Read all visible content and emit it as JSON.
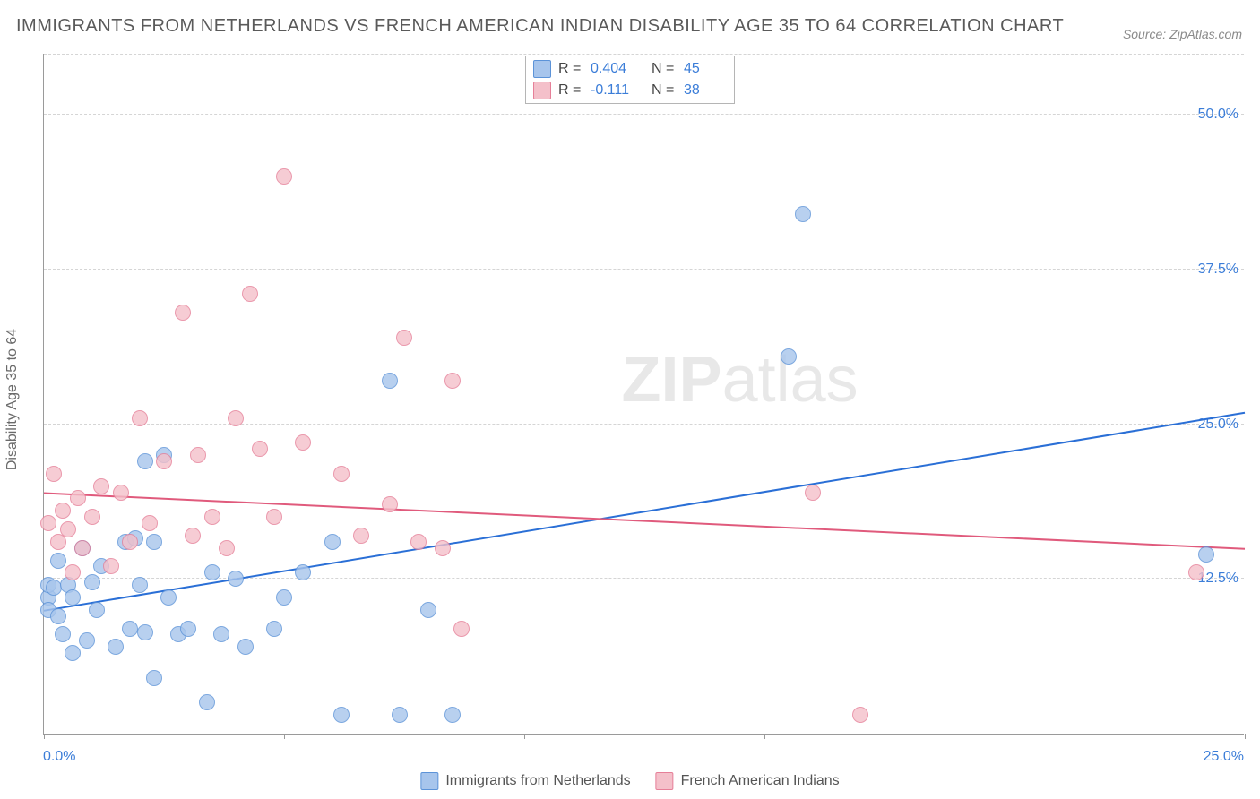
{
  "title": "IMMIGRANTS FROM NETHERLANDS VS FRENCH AMERICAN INDIAN DISABILITY AGE 35 TO 64 CORRELATION CHART",
  "source": "Source: ZipAtlas.com",
  "watermark": {
    "zip": "ZIP",
    "atlas": "atlas"
  },
  "ylabel": "Disability Age 35 to 64",
  "chart": {
    "type": "scatter",
    "background_color": "#ffffff",
    "grid_color": "#d5d5d5",
    "xlim": [
      0,
      25
    ],
    "ylim": [
      0,
      55
    ],
    "xticks": [
      0,
      5,
      10,
      15,
      20,
      25
    ],
    "xtick_labels": {
      "0": "0.0%",
      "25": "25.0%"
    },
    "yticks": [
      12.5,
      25.0,
      37.5,
      50.0
    ],
    "ytick_labels": [
      "12.5%",
      "25.0%",
      "37.5%",
      "50.0%"
    ],
    "marker_radius": 9,
    "marker_fill_opacity": 0.35,
    "marker_stroke_width": 1.5,
    "trend_line_width": 2
  },
  "legend_top": {
    "rows": [
      {
        "swatch_fill": "#a7c5ec",
        "swatch_stroke": "#5c93d8",
        "r": "0.404",
        "n": "45"
      },
      {
        "swatch_fill": "#f4c0ca",
        "swatch_stroke": "#e67f98",
        "r": "-0.111",
        "n": "38"
      }
    ],
    "labels": {
      "r": "R =",
      "n": "N ="
    }
  },
  "legend_bottom": {
    "items": [
      {
        "swatch_fill": "#a7c5ec",
        "swatch_stroke": "#5c93d8",
        "label": "Immigrants from Netherlands"
      },
      {
        "swatch_fill": "#f4c0ca",
        "swatch_stroke": "#e67f98",
        "label": "French American Indians"
      }
    ]
  },
  "series": [
    {
      "name": "Immigrants from Netherlands",
      "fill": "#a7c5ec",
      "stroke": "#5c93d8",
      "trend_color": "#2a6fd6",
      "trend": {
        "x1": 0,
        "y1": 10.0,
        "x2": 25,
        "y2": 26.0
      },
      "points": [
        [
          0.1,
          11.0
        ],
        [
          0.1,
          12.0
        ],
        [
          0.1,
          10.0
        ],
        [
          0.2,
          11.8
        ],
        [
          0.3,
          9.5
        ],
        [
          0.3,
          14.0
        ],
        [
          0.4,
          8.0
        ],
        [
          0.5,
          12.0
        ],
        [
          0.6,
          11.0
        ],
        [
          0.6,
          6.5
        ],
        [
          0.8,
          15.0
        ],
        [
          0.9,
          7.5
        ],
        [
          1.0,
          12.2
        ],
        [
          1.1,
          10.0
        ],
        [
          1.2,
          13.5
        ],
        [
          1.5,
          7.0
        ],
        [
          1.7,
          15.5
        ],
        [
          1.8,
          8.5
        ],
        [
          1.9,
          15.8
        ],
        [
          2.0,
          12.0
        ],
        [
          2.1,
          8.2
        ],
        [
          2.1,
          22.0
        ],
        [
          2.3,
          15.5
        ],
        [
          2.5,
          22.5
        ],
        [
          2.6,
          11.0
        ],
        [
          2.8,
          8.0
        ],
        [
          3.0,
          8.5
        ],
        [
          3.4,
          2.5
        ],
        [
          3.5,
          13.0
        ],
        [
          3.7,
          8.0
        ],
        [
          4.0,
          12.5
        ],
        [
          4.2,
          7.0
        ],
        [
          4.8,
          8.5
        ],
        [
          5.0,
          11.0
        ],
        [
          5.4,
          13.0
        ],
        [
          6.0,
          15.5
        ],
        [
          6.2,
          1.5
        ],
        [
          7.2,
          28.5
        ],
        [
          7.4,
          1.5
        ],
        [
          8.0,
          10.0
        ],
        [
          8.5,
          1.5
        ],
        [
          15.5,
          30.5
        ],
        [
          15.8,
          42.0
        ],
        [
          24.2,
          14.5
        ],
        [
          2.3,
          4.5
        ]
      ]
    },
    {
      "name": "French American Indians",
      "fill": "#f4c0ca",
      "stroke": "#e67f98",
      "trend_color": "#e05a7c",
      "trend": {
        "x1": 0,
        "y1": 19.5,
        "x2": 25,
        "y2": 15.0
      },
      "points": [
        [
          0.1,
          17.0
        ],
        [
          0.2,
          21.0
        ],
        [
          0.3,
          15.5
        ],
        [
          0.4,
          18.0
        ],
        [
          0.5,
          16.5
        ],
        [
          0.6,
          13.0
        ],
        [
          0.7,
          19.0
        ],
        [
          0.8,
          15.0
        ],
        [
          1.0,
          17.5
        ],
        [
          1.2,
          20.0
        ],
        [
          1.4,
          13.5
        ],
        [
          1.6,
          19.5
        ],
        [
          1.8,
          15.5
        ],
        [
          2.0,
          25.5
        ],
        [
          2.2,
          17.0
        ],
        [
          2.5,
          22.0
        ],
        [
          2.9,
          34.0
        ],
        [
          3.1,
          16.0
        ],
        [
          3.2,
          22.5
        ],
        [
          3.5,
          17.5
        ],
        [
          3.8,
          15.0
        ],
        [
          4.0,
          25.5
        ],
        [
          4.3,
          35.5
        ],
        [
          4.5,
          23.0
        ],
        [
          4.8,
          17.5
        ],
        [
          5.0,
          45.0
        ],
        [
          5.4,
          23.5
        ],
        [
          6.2,
          21.0
        ],
        [
          6.6,
          16.0
        ],
        [
          7.2,
          18.5
        ],
        [
          7.5,
          32.0
        ],
        [
          7.8,
          15.5
        ],
        [
          8.3,
          15.0
        ],
        [
          8.5,
          28.5
        ],
        [
          8.7,
          8.5
        ],
        [
          16.0,
          19.5
        ],
        [
          17.0,
          1.5
        ],
        [
          24.0,
          13.0
        ]
      ]
    }
  ]
}
